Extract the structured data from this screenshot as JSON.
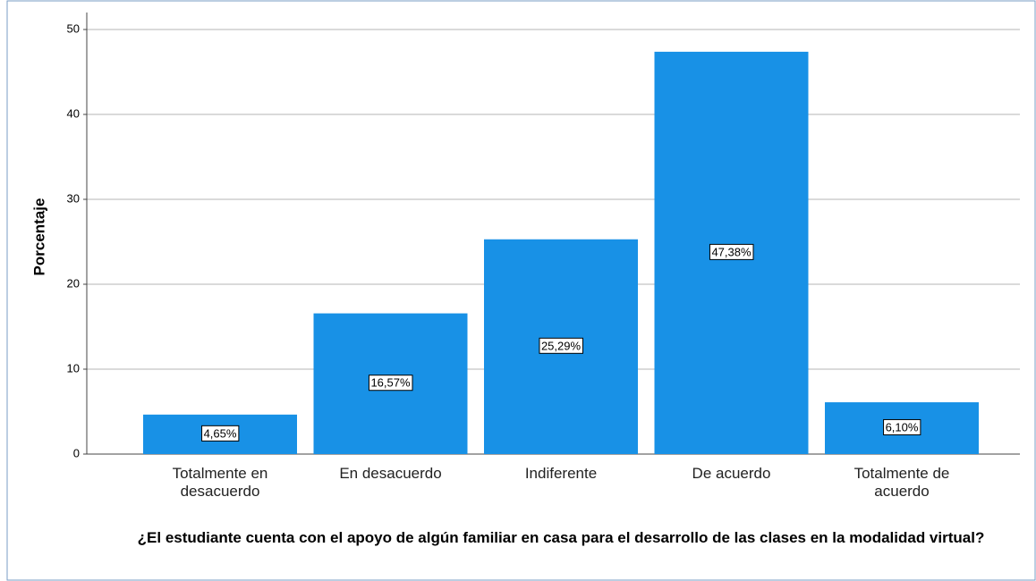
{
  "chart_data": {
    "type": "bar",
    "x_label": "¿El estudiante cuenta con el apoyo de algún familiar en casa para el desarrollo de las clases en la modalidad virtual?",
    "y_label": "Porcentaje",
    "categories": [
      "Totalmente en desacuerdo",
      "En desacuerdo",
      "Indiferente",
      "De acuerdo",
      "Totalmente de acuerdo"
    ],
    "values": [
      4.65,
      16.57,
      25.29,
      47.38,
      6.1
    ],
    "value_labels": [
      "4,65%",
      "16,57%",
      "25,29%",
      "47,38%",
      "6,10%"
    ],
    "color": "#1891e6",
    "ylim": [
      0,
      52
    ],
    "yticks": [
      0,
      10,
      20,
      30,
      40,
      50
    ],
    "grid": true
  }
}
